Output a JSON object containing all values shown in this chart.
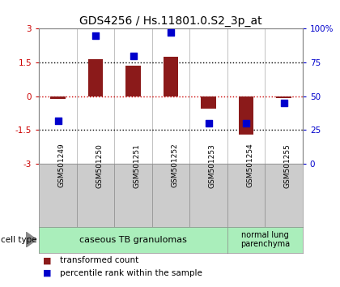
{
  "title": "GDS4256 / Hs.11801.0.S2_3p_at",
  "samples": [
    "GSM501249",
    "GSM501250",
    "GSM501251",
    "GSM501252",
    "GSM501253",
    "GSM501254",
    "GSM501255"
  ],
  "transformed_count": [
    -0.12,
    1.65,
    1.35,
    1.75,
    -0.55,
    -1.7,
    -0.1
  ],
  "percentile_rank": [
    32,
    95,
    80,
    97,
    30,
    30,
    45
  ],
  "ylim_left": [
    -3,
    3
  ],
  "ylim_right": [
    0,
    100
  ],
  "bar_color": "#8B1A1A",
  "dot_color": "#0000CC",
  "zero_line_color": "#CC0000",
  "dotted_line_color": "#000000",
  "cell_type_groups": [
    {
      "label": "caseous TB granulomas",
      "count": 5,
      "color": "#AAEEBB"
    },
    {
      "label": "normal lung\nparenchyma",
      "count": 2,
      "color": "#AAEEBB"
    }
  ],
  "legend_bar_label": "transformed count",
  "legend_dot_label": "percentile rank within the sample",
  "cell_type_label": "cell type",
  "background_color": "#FFFFFF",
  "sample_box_color": "#CCCCCC",
  "bar_width": 0.4,
  "dot_size": 40,
  "title_fontsize": 10,
  "tick_fontsize": 7.5,
  "sample_fontsize": 6.5,
  "legend_fontsize": 7.5
}
